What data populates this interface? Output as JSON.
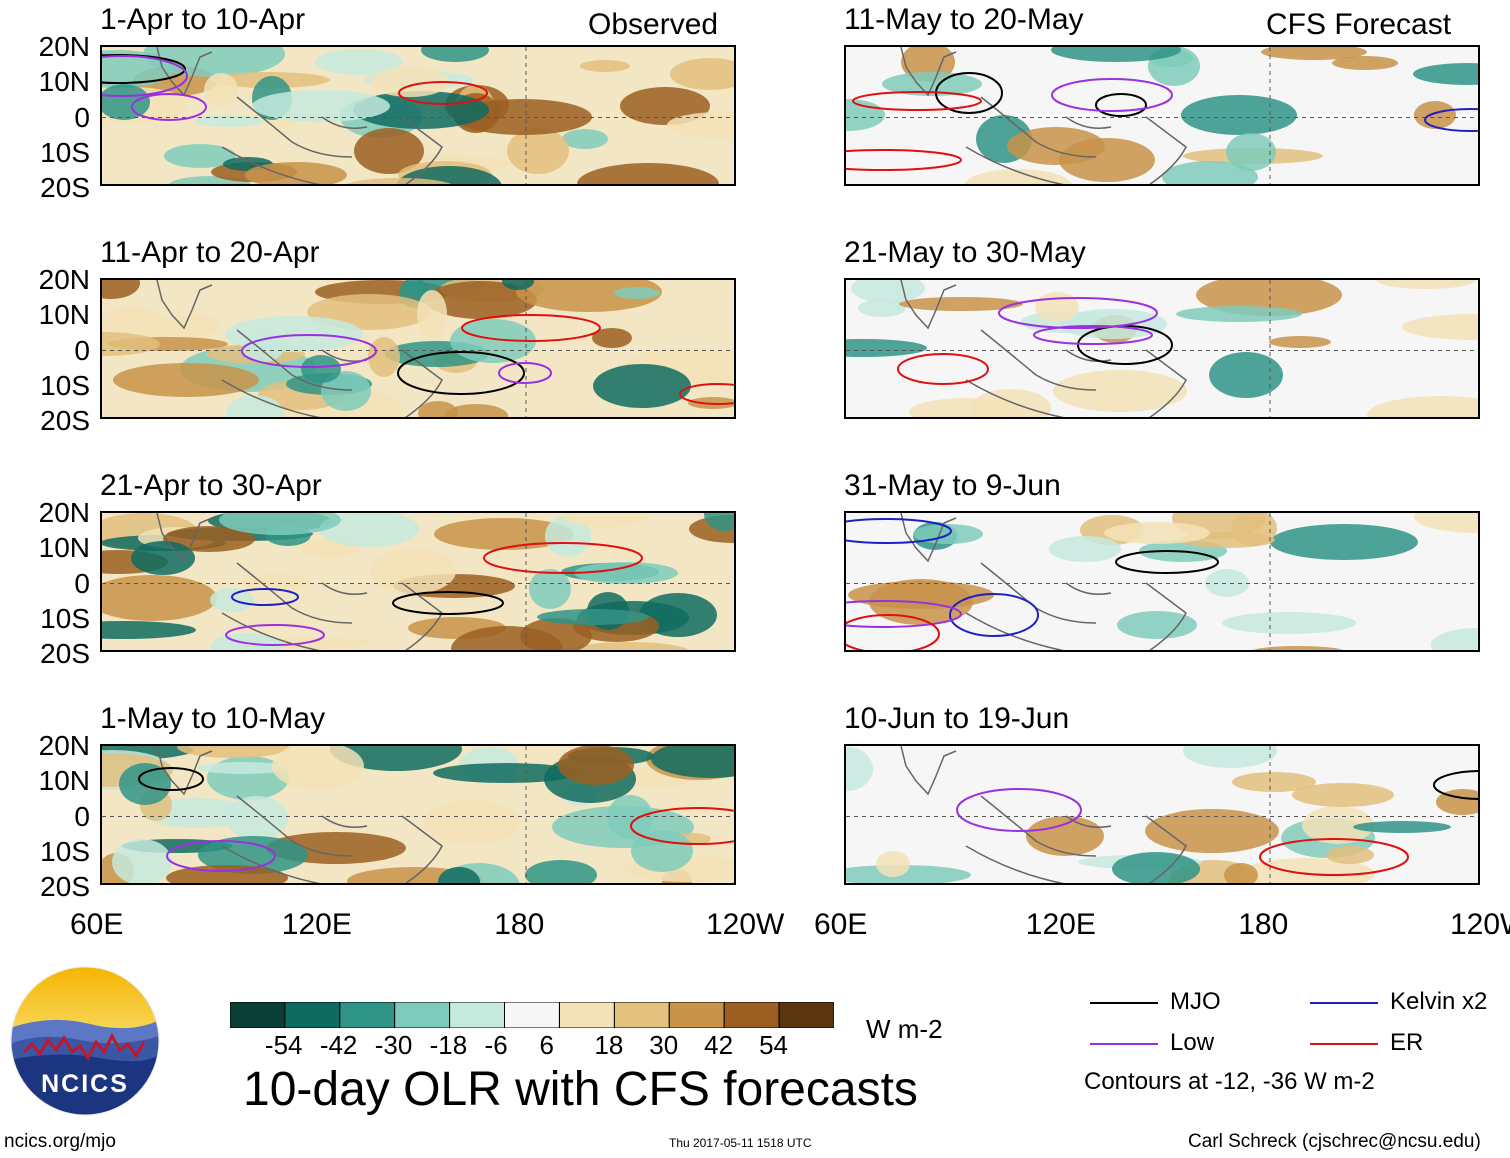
{
  "chart_data": {
    "type": "heatmap",
    "title": "10-day OLR with CFS forecasts",
    "variable": "OLR anomaly",
    "units": "W m-2",
    "lat_ticks": [
      "20N",
      "10N",
      "0",
      "10S",
      "20S"
    ],
    "lon_ticks": [
      "60E",
      "120E",
      "180",
      "120W"
    ],
    "lat_range": [
      -20,
      20
    ],
    "lon_range": [
      60,
      240
    ],
    "colorbar_ticks": [
      "-54",
      "-42",
      "-30",
      "-18",
      "-6",
      "6",
      "18",
      "30",
      "42",
      "54"
    ],
    "colorbar_colors": [
      "#0b3f36",
      "#0f6b60",
      "#2f9486",
      "#7fcbbb",
      "#c6e9de",
      "#f6f6f6",
      "#f3e2b7",
      "#e2c07e",
      "#c8934a",
      "#9b5f22",
      "#5a3510"
    ],
    "column_labels": [
      "Observed",
      "CFS Forecast"
    ],
    "panels": [
      {
        "period": "1-Apr to 10-Apr",
        "column": "Observed"
      },
      {
        "period": "11-Apr to 20-Apr",
        "column": "Observed"
      },
      {
        "period": "21-Apr to 30-Apr",
        "column": "Observed"
      },
      {
        "period": "1-May to 10-May",
        "column": "Observed"
      },
      {
        "period": "11-May to 20-May",
        "column": "CFS Forecast"
      },
      {
        "period": "21-May to 30-May",
        "column": "CFS Forecast"
      },
      {
        "period": "31-May to 9-Jun",
        "column": "CFS Forecast"
      },
      {
        "period": "10-Jun to 19-Jun",
        "column": "CFS Forecast"
      }
    ],
    "legend": [
      {
        "label": "MJO",
        "color": "#000000"
      },
      {
        "label": "Kelvin x2",
        "color": "#2020c0"
      },
      {
        "label": "Low",
        "color": "#9b30e0"
      },
      {
        "label": "ER",
        "color": "#e01010"
      }
    ],
    "contour_note": "Contours at -12, -36 W m-2"
  },
  "branding": {
    "logo_text": "NCICS",
    "url": "ncics.org/mjo",
    "timestamp": "Thu 2017-05-11 1518 UTC",
    "author": "Carl Schreck (cjschrec@ncsu.edu)"
  }
}
